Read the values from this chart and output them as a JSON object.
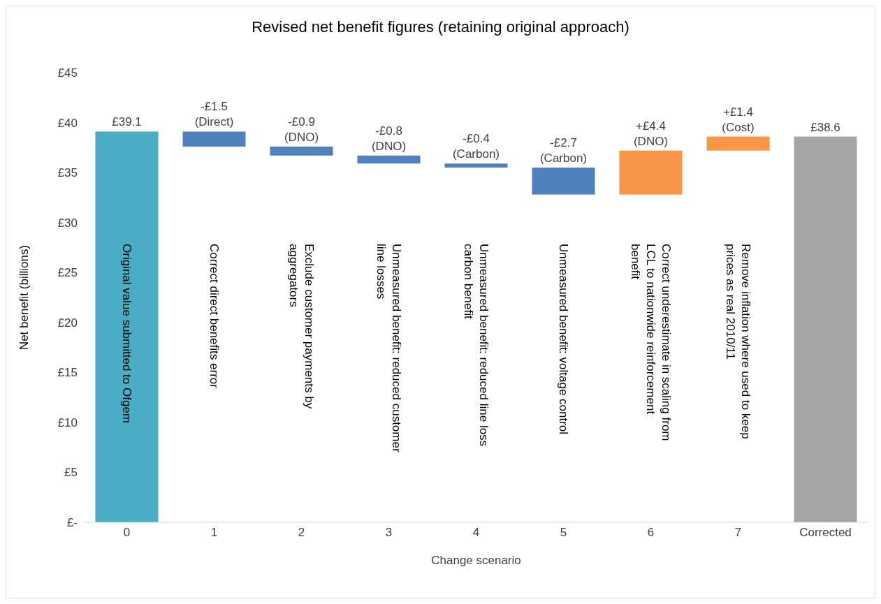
{
  "chart_data": {
    "type": "bar",
    "title": "Revised net benefit figures (retaining original approach)",
    "xlabel": "Change scenario",
    "ylabel": "Net benefit (billions)",
    "categories": [
      "0",
      "1",
      "2",
      "3",
      "4",
      "5",
      "6",
      "7",
      "Corrected"
    ],
    "values": [
      39.1,
      -1.5,
      -0.9,
      -0.8,
      -0.4,
      -2.7,
      4.4,
      1.4,
      38.6
    ],
    "base": [
      0,
      39.1,
      37.6,
      36.7,
      35.9,
      35.5,
      32.8,
      37.2,
      0
    ],
    "colors": [
      "#4bacc6",
      "#4f81bd",
      "#4f81bd",
      "#4f81bd",
      "#4f81bd",
      "#4f81bd",
      "#f79646",
      "#f79646",
      "#a5a5a5"
    ],
    "value_labels": [
      "£39.1",
      "-£1.5\n(Direct)",
      "-£0.9\n(DNO)",
      "-£0.8\n(DNO)",
      "-£0.4\n(Carbon)",
      "-£2.7\n(Carbon)",
      "+£4.4\n(DNO)",
      "+£1.4\n(Cost)",
      "£38.6"
    ],
    "annotations": [
      "Original value submitted to Ofgem",
      "Correct direct benefits error",
      "Exclude customer payments by aggregators",
      "Unmeasured benefit: reduced customer line losses",
      "Unmeasured benefit: reduced line loss carbon benefit",
      "Unmeasured benefit: voltage control",
      "Correct underestimate in scaling from LCL to nationwide reinforcement benefit",
      "Remove inflation where used to keep prices as real 2010/11"
    ],
    "ylim": [
      0,
      45
    ],
    "yticks": [
      {
        "value": 0,
        "label": "£-"
      },
      {
        "value": 5,
        "label": "£5"
      },
      {
        "value": 10,
        "label": "£10"
      },
      {
        "value": 15,
        "label": "£15"
      },
      {
        "value": 20,
        "label": "£20"
      },
      {
        "value": 25,
        "label": "£25"
      },
      {
        "value": 30,
        "label": "£30"
      },
      {
        "value": 35,
        "label": "£35"
      },
      {
        "value": 40,
        "label": "£40"
      },
      {
        "value": 45,
        "label": "£45"
      }
    ]
  }
}
